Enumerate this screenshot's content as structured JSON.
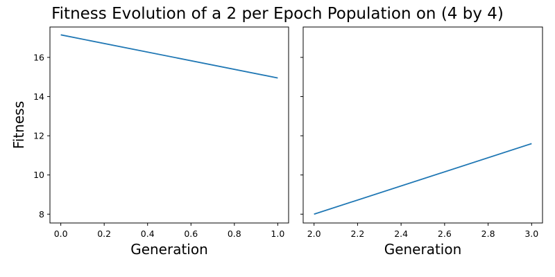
{
  "figure": {
    "title": "Fitness Evolution of a 2 per Epoch Population on (4 by 4)"
  },
  "chart_data": [
    {
      "type": "line",
      "title": "",
      "xlabel": "Generation",
      "ylabel": "Fitness",
      "xlim": [
        -0.05,
        1.05
      ],
      "ylim": [
        7.55,
        17.55
      ],
      "xticks": [
        0.0,
        0.2,
        0.4,
        0.6,
        0.8,
        1.0
      ],
      "xtick_labels": [
        "0.0",
        "0.2",
        "0.4",
        "0.6",
        "0.8",
        "1.0"
      ],
      "yticks": [
        8,
        10,
        12,
        14,
        16
      ],
      "ytick_labels": [
        "8",
        "10",
        "12",
        "14",
        "16"
      ],
      "show_ytick_labels": true,
      "grid": false,
      "series": [
        {
          "x": [
            0,
            1
          ],
          "y": [
            17.15,
            14.95
          ],
          "color": "#1f77b4"
        }
      ]
    },
    {
      "type": "line",
      "title": "",
      "xlabel": "Generation",
      "ylabel": "",
      "xlim": [
        1.95,
        3.05
      ],
      "ylim": [
        7.55,
        17.55
      ],
      "xticks": [
        2.0,
        2.2,
        2.4,
        2.6,
        2.8,
        3.0
      ],
      "xtick_labels": [
        "2.0",
        "2.2",
        "2.4",
        "2.6",
        "2.8",
        "3.0"
      ],
      "yticks": [
        8,
        10,
        12,
        14,
        16
      ],
      "ytick_labels": [
        "8",
        "10",
        "12",
        "14",
        "16"
      ],
      "show_ytick_labels": false,
      "grid": false,
      "series": [
        {
          "x": [
            2,
            3
          ],
          "y": [
            8.0,
            11.6
          ],
          "color": "#1f77b4"
        }
      ]
    }
  ]
}
